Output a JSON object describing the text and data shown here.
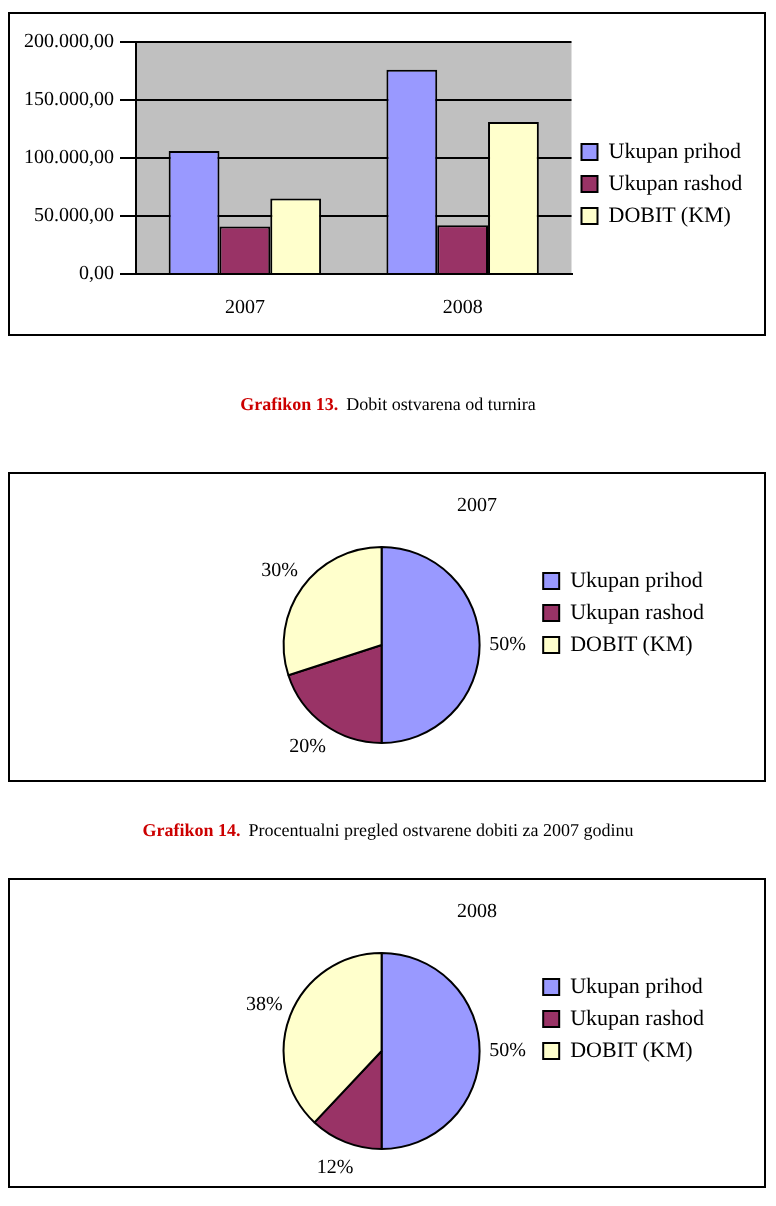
{
  "chart_data": [
    {
      "type": "bar",
      "categories": [
        "2007",
        "2008"
      ],
      "series": [
        {
          "name": "Ukupan prihod",
          "color": "#9999ff",
          "values": [
            106000,
            176000
          ]
        },
        {
          "name": "Ukupan rashod",
          "color": "#993366",
          "values": [
            41000,
            42000
          ]
        },
        {
          "name": "DOBIT (KM)",
          "color": "#ffffcc",
          "values": [
            65000,
            131000
          ]
        }
      ],
      "ylim": [
        0,
        200000
      ],
      "yticks": [
        {
          "value": 0,
          "label": "0,00"
        },
        {
          "value": 50000,
          "label": "50.000,00"
        },
        {
          "value": 100000,
          "label": "100.000,00"
        },
        {
          "value": 150000,
          "label": "150.000,00"
        },
        {
          "value": 200000,
          "label": "200.000,00"
        }
      ],
      "grid": "y",
      "legend": "right",
      "annotations": [
        "Grafikon 13.",
        "Dobit ostvarena od turnira"
      ]
    },
    {
      "type": "pie",
      "title": "2007",
      "categories": [
        "Ukupan prihod",
        "Ukupan rashod",
        "DOBIT (KM)"
      ],
      "values": [
        50,
        20,
        30
      ],
      "colors": [
        "#9999ff",
        "#993366",
        "#ffffcc"
      ],
      "value_labels": [
        "50%",
        "20%",
        "30%"
      ],
      "legend": "right",
      "annotations": [
        "Grafikon 14.",
        "Procentualni pregled ostvarene dobiti za 2007 godinu"
      ]
    },
    {
      "type": "pie",
      "title": "2008",
      "categories": [
        "Ukupan prihod",
        "Ukupan rashod",
        "DOBIT (KM)"
      ],
      "values": [
        50,
        12,
        38
      ],
      "colors": [
        "#9999ff",
        "#993366",
        "#ffffcc"
      ],
      "value_labels": [
        "50%",
        "12%",
        "38%"
      ],
      "legend": "right"
    }
  ]
}
